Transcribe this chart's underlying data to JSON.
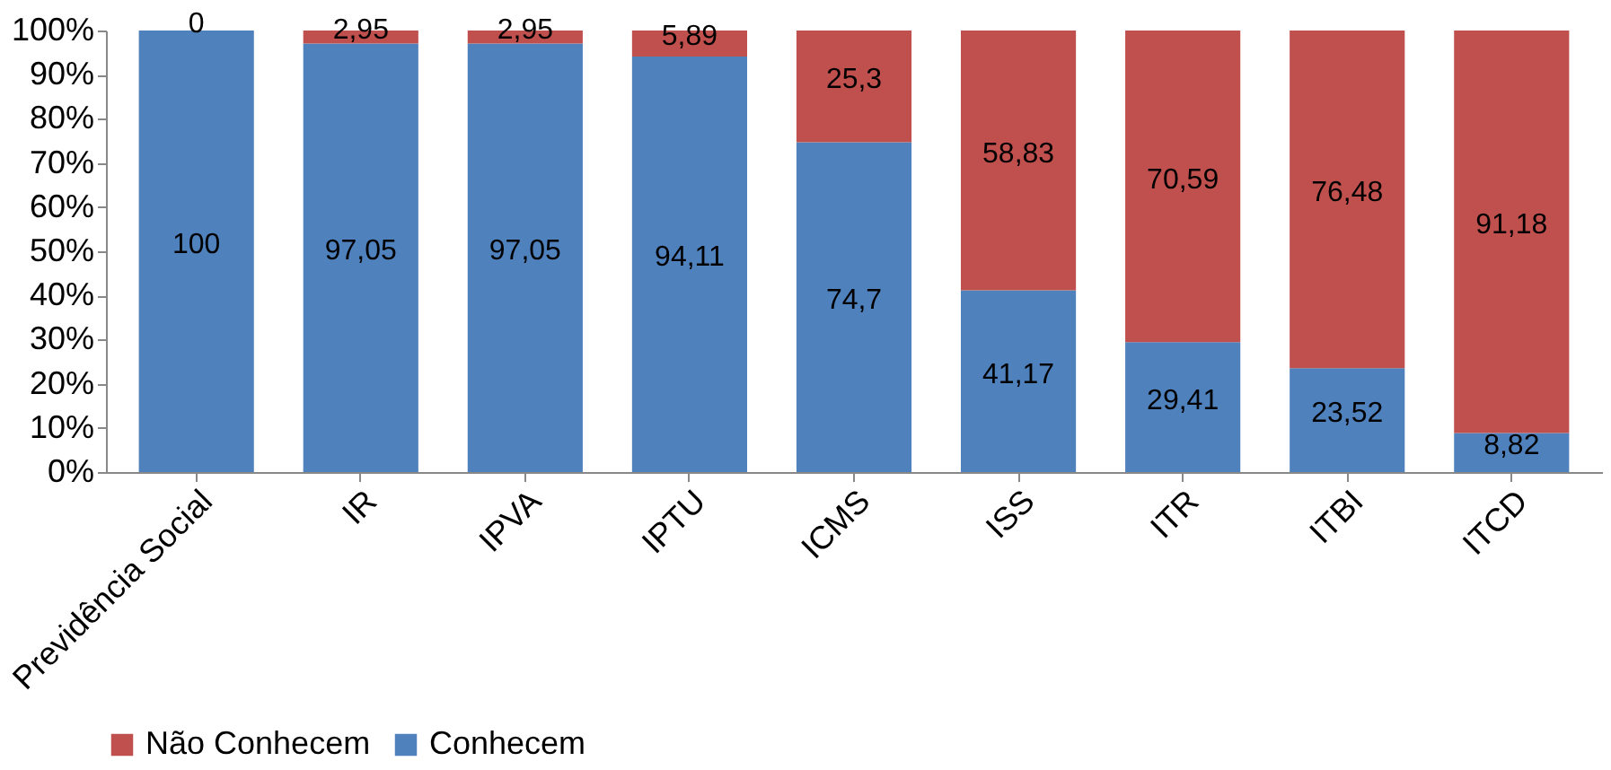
{
  "chart_data": {
    "type": "bar",
    "stacked": true,
    "categories": [
      "Previdência Social",
      "IR",
      "IPVA",
      "IPTU",
      "ICMS",
      "ISS",
      "ITR",
      "ITBI",
      "ITCD"
    ],
    "series": [
      {
        "name": "Conhecem",
        "color": "#4f81bd",
        "values": [
          100,
          97.05,
          97.05,
          94.11,
          74.7,
          41.17,
          29.41,
          23.52,
          8.82
        ],
        "value_labels": [
          "100",
          "97,05",
          "97,05",
          "94,11",
          "74,7",
          "41,17",
          "29,41",
          "23,52",
          "8,82"
        ]
      },
      {
        "name": "Não Conhecem",
        "color": "#c0504d",
        "values": [
          0,
          2.95,
          2.95,
          5.89,
          25.3,
          58.83,
          70.59,
          76.48,
          91.18
        ],
        "value_labels": [
          "0",
          "2,95",
          "2,95",
          "5,89",
          "25,3",
          "58,83",
          "70,59",
          "76,48",
          "91,18"
        ]
      }
    ],
    "ylim": [
      0,
      100
    ],
    "yticks": [
      {
        "value": 0,
        "label": "0%"
      },
      {
        "value": 10,
        "label": "10%"
      },
      {
        "value": 20,
        "label": "20%"
      },
      {
        "value": 30,
        "label": "30%"
      },
      {
        "value": 40,
        "label": "40%"
      },
      {
        "value": 50,
        "label": "50%"
      },
      {
        "value": 60,
        "label": "60%"
      },
      {
        "value": 70,
        "label": "70%"
      },
      {
        "value": 80,
        "label": "80%"
      },
      {
        "value": 90,
        "label": "90%"
      },
      {
        "value": 100,
        "label": "100%"
      }
    ],
    "grid": false,
    "legend": "bottom"
  }
}
